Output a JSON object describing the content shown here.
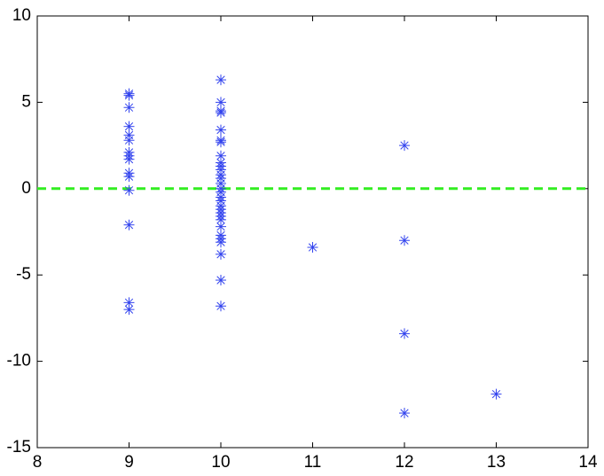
{
  "chart_data": {
    "type": "scatter",
    "series": [
      {
        "color": "#3344ee",
        "marker": "asterisk",
        "x": [
          9,
          9,
          9,
          9,
          9,
          9,
          9,
          9,
          9,
          9,
          9,
          9,
          9,
          9,
          9,
          10,
          10,
          10,
          10,
          10,
          10,
          10,
          10,
          10,
          10,
          10,
          10,
          10,
          10,
          10,
          10,
          10,
          10,
          10,
          10,
          10,
          10,
          10,
          10,
          10,
          10,
          10,
          10,
          10,
          10,
          11,
          12,
          12,
          12,
          12,
          13
        ],
        "values": [
          5.5,
          5.4,
          4.7,
          3.6,
          3.1,
          2.8,
          2.1,
          1.9,
          1.7,
          0.9,
          0.7,
          -0.1,
          -2.1,
          -6.6,
          -7.0,
          6.3,
          5.0,
          4.5,
          4.4,
          3.4,
          2.8,
          2.7,
          1.9,
          1.5,
          1.3,
          1.1,
          0.8,
          0.6,
          0.3,
          0.0,
          -0.2,
          -0.5,
          -0.7,
          -1.0,
          -1.2,
          -1.4,
          -1.6,
          -1.8,
          -2.2,
          -2.7,
          -2.9,
          -3.1,
          -3.8,
          -5.3,
          -6.8,
          -3.4,
          2.5,
          -3.0,
          -8.4,
          -13.0,
          -11.9
        ]
      }
    ],
    "hline": {
      "y": 0,
      "color": "#33ee22",
      "dashed": true
    },
    "xlim": [
      8,
      14
    ],
    "xticks": [
      8,
      9,
      10,
      11,
      12,
      13,
      14
    ],
    "ylim": [
      -15,
      10
    ],
    "yticks": [
      -15,
      -10,
      -5,
      0,
      5,
      10
    ],
    "grid": false
  }
}
